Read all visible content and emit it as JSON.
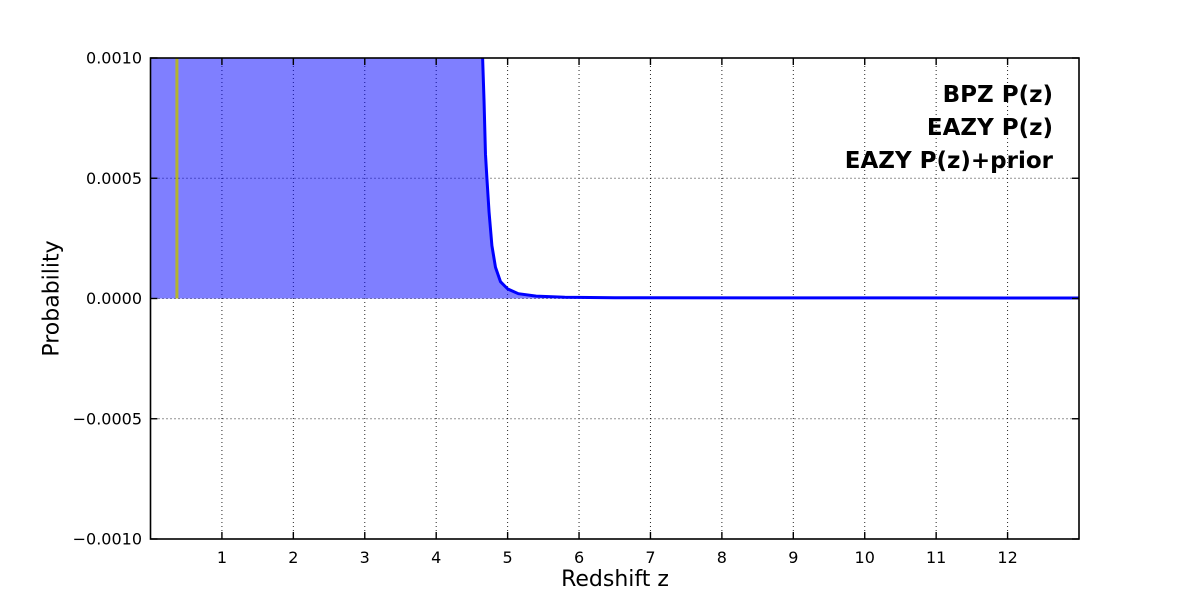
{
  "figure": {
    "background": "#ffffff"
  },
  "chart_data": {
    "type": "line",
    "title": "",
    "xlabel": "Redshift z",
    "ylabel": "Probability",
    "xlim": [
      0,
      13
    ],
    "ylim": [
      -0.001,
      0.001
    ],
    "xticks": {
      "values": [
        1,
        2,
        3,
        4,
        5,
        6,
        7,
        8,
        9,
        10,
        11,
        12
      ],
      "labels": [
        "1",
        "2",
        "3",
        "4",
        "5",
        "6",
        "7",
        "8",
        "9",
        "10",
        "11",
        "12"
      ]
    },
    "yticks": {
      "values": [
        0.001,
        0.0005,
        0.0,
        -0.0005,
        -0.001
      ],
      "labels": [
        "0.0010",
        "0.0005",
        "0.0000",
        "−0.0005",
        "−0.0010"
      ]
    },
    "grid": {
      "visible": true,
      "style": "dotted",
      "color": "#000000"
    },
    "legend": {
      "position": "upper-right",
      "frame": false,
      "entries": [
        {
          "label": "BPZ P(z)",
          "color": "#0000ff"
        },
        {
          "label": "EAZY P(z)",
          "color": "#ff0000"
        },
        {
          "label": "EAZY P(z)+prior",
          "color": "#008000"
        }
      ]
    },
    "series": [
      {
        "name": "BPZ P(z)",
        "type": "line",
        "color": "#0000ff",
        "linewidth": 3,
        "fill_to_zero": true,
        "fill_color": "rgba(0,0,255,0.5)",
        "clipped_above_ymax": true,
        "points": [
          [
            0.0,
            0.001
          ],
          [
            4.65,
            0.001
          ],
          [
            4.67,
            0.00082
          ],
          [
            4.69,
            0.0006
          ],
          [
            4.71,
            0.0005
          ],
          [
            4.74,
            0.00036
          ],
          [
            4.78,
            0.00022
          ],
          [
            4.83,
            0.00013
          ],
          [
            4.9,
            7e-05
          ],
          [
            5.0,
            4e-05
          ],
          [
            5.15,
            2e-05
          ],
          [
            5.4,
            1e-05
          ],
          [
            5.8,
            5e-06
          ],
          [
            6.5,
            3e-06
          ],
          [
            13.0,
            2e-06
          ]
        ]
      },
      {
        "name": "peak-marker",
        "type": "vline",
        "x": 0.37,
        "y_from": 0.0,
        "y_to": 0.001,
        "color": "#b3b32e",
        "linewidth": 3
      }
    ]
  }
}
